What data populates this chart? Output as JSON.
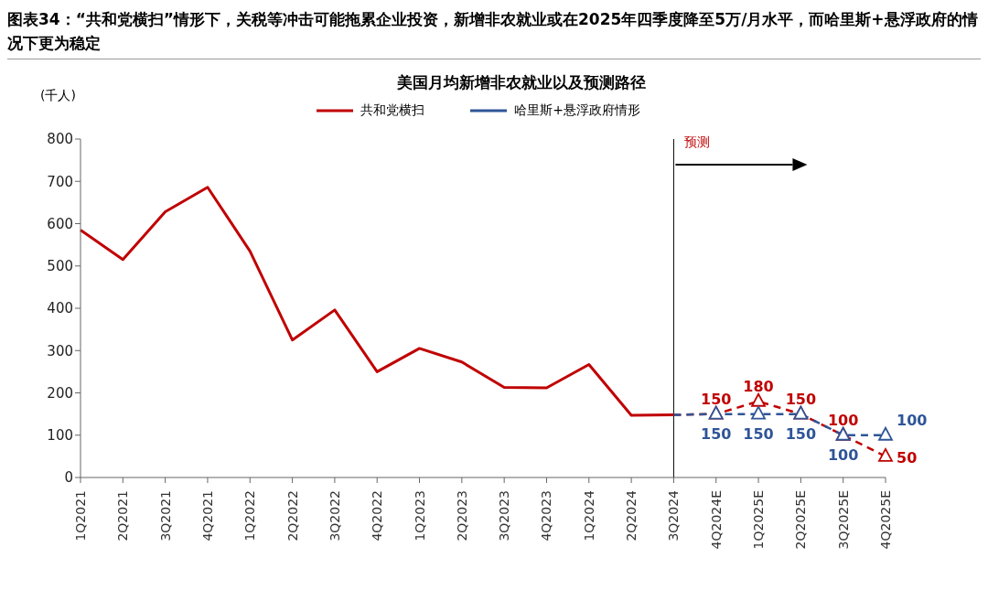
{
  "chart_data": {
    "type": "line",
    "title": "图表34：“共和党横扫”情形下，关税等冲击可能拖累企业投资，新增非农就业或在2025年四季度降至5万/月水平，而哈里斯+悬浮政府的情况下更为稳定",
    "subtitle": "美国月均新增非农就业以及预测路径",
    "ylabel": "(千人)",
    "categories": [
      "1Q2021",
      "2Q2021",
      "3Q2021",
      "4Q2021",
      "1Q2022",
      "2Q2022",
      "3Q2022",
      "4Q2022",
      "1Q2023",
      "2Q2023",
      "3Q2023",
      "4Q2023",
      "1Q2024",
      "2Q2024",
      "3Q2024",
      "4Q2024E",
      "1Q2025E",
      "2Q2025E",
      "3Q2025E",
      "4Q2025E"
    ],
    "series": [
      {
        "name": "共和党横扫",
        "color": "#c00000",
        "line_style": "solid",
        "marker": "none",
        "values": [
          585,
          515,
          628,
          686,
          535,
          325,
          396,
          250,
          305,
          273,
          213,
          212,
          267,
          147,
          148,
          null,
          null,
          null,
          null,
          null
        ]
      },
      {
        "color": "#c00000",
        "line_style": "dashed",
        "marker": "triangle",
        "values": [
          null,
          null,
          null,
          null,
          null,
          null,
          null,
          null,
          null,
          null,
          null,
          null,
          null,
          null,
          148,
          150,
          180,
          150,
          100,
          50
        ],
        "value_labels": [
          null,
          null,
          null,
          null,
          null,
          null,
          null,
          null,
          null,
          null,
          null,
          null,
          null,
          null,
          null,
          "150",
          "180",
          "150",
          "100",
          "50"
        ]
      },
      {
        "name": "哈里斯+悬浮政府情形",
        "color": "#2f5597",
        "line_style": "dashed",
        "marker": "triangle",
        "values": [
          null,
          null,
          null,
          null,
          null,
          null,
          null,
          null,
          null,
          null,
          null,
          null,
          null,
          null,
          148,
          150,
          150,
          150,
          100,
          100
        ],
        "value_labels": [
          null,
          null,
          null,
          null,
          null,
          null,
          null,
          null,
          null,
          null,
          null,
          null,
          null,
          null,
          null,
          "150",
          "150",
          "150",
          "100",
          "100"
        ]
      }
    ],
    "ylim": [
      0,
      800
    ],
    "yticks": [
      0,
      100,
      200,
      300,
      400,
      500,
      600,
      700,
      800
    ],
    "legend": "top",
    "ref_lines": [
      {
        "axis": "x",
        "value": "3Q2024",
        "label": "预测",
        "color": "#000000",
        "line_style": "solid"
      }
    ]
  }
}
